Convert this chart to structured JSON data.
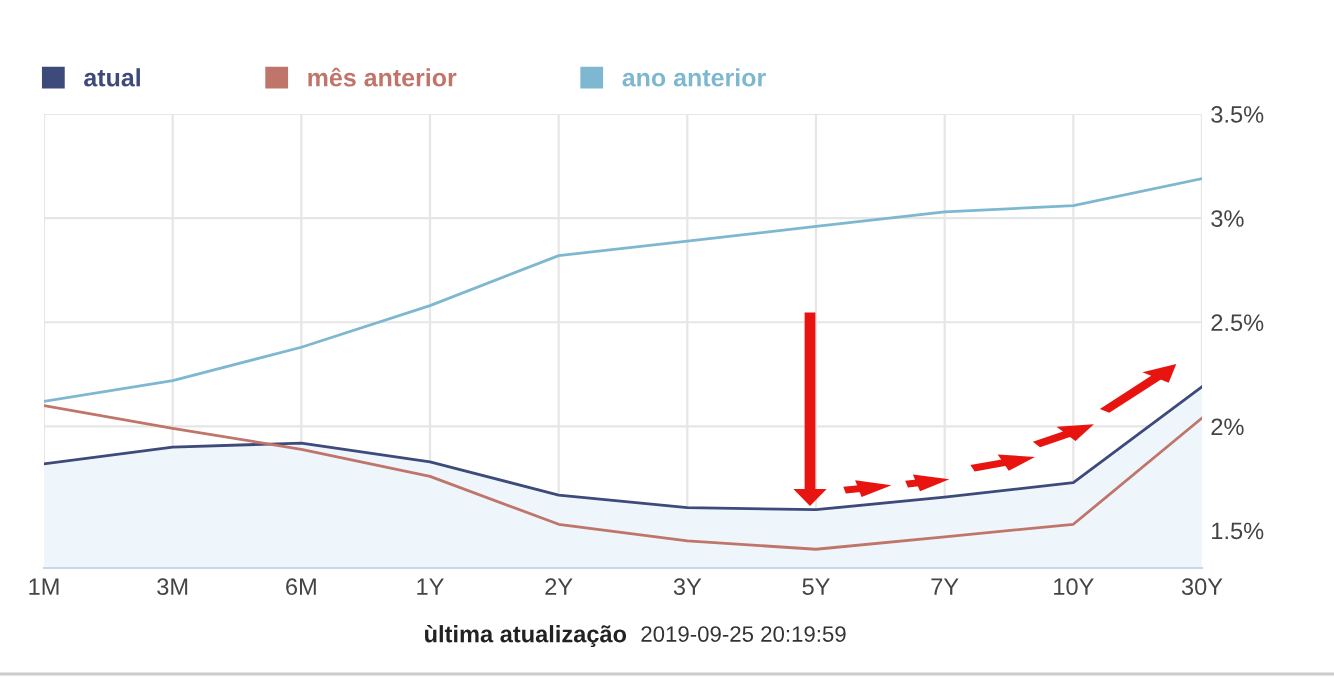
{
  "chart_data": {
    "type": "line",
    "categories": [
      "1M",
      "3M",
      "6M",
      "1Y",
      "2Y",
      "3Y",
      "5Y",
      "7Y",
      "10Y",
      "30Y"
    ],
    "series": [
      {
        "name": "atual",
        "color": "#3d4a7a",
        "type": "area",
        "values": [
          1.82,
          1.9,
          1.92,
          1.83,
          1.67,
          1.61,
          1.6,
          1.66,
          1.73,
          2.19
        ]
      },
      {
        "name": "mês anterior",
        "color": "#c0756b",
        "values": [
          2.1,
          1.99,
          1.89,
          1.76,
          1.53,
          1.45,
          1.41,
          1.47,
          1.53,
          2.04
        ]
      },
      {
        "name": "ano anterior",
        "color": "#7db8d0",
        "values": [
          2.12,
          2.22,
          2.38,
          2.58,
          2.82,
          2.89,
          2.96,
          3.03,
          3.06,
          3.19
        ]
      }
    ],
    "ylim": [
      1.32,
      3.5
    ],
    "yticks": [
      {
        "value": 1.5,
        "label": "1.5%"
      },
      {
        "value": 2,
        "label": "2%"
      },
      {
        "value": 2.5,
        "label": "2.5%"
      },
      {
        "value": 3,
        "label": "3%"
      },
      {
        "value": 3.5,
        "label": "3.5%"
      }
    ],
    "grid": true,
    "legend": "top left",
    "annotations": [
      "ùltima atualização",
      "2019-09-25 20:19:59"
    ]
  }
}
